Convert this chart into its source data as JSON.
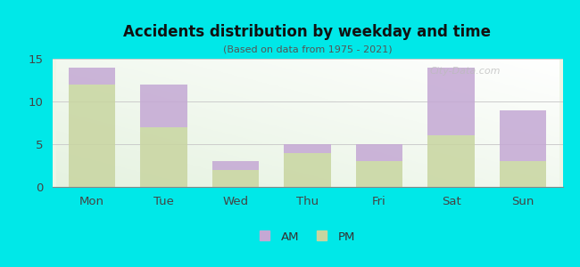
{
  "categories": [
    "Mon",
    "Tue",
    "Wed",
    "Thu",
    "Fri",
    "Sat",
    "Sun"
  ],
  "pm_values": [
    12,
    7,
    2,
    4,
    3,
    6,
    3
  ],
  "am_values": [
    2,
    5,
    1,
    1,
    2,
    8,
    6
  ],
  "am_color": "#c4a8d4",
  "pm_color": "#c8d5a0",
  "title": "Accidents distribution by weekday and time",
  "subtitle": "(Based on data from 1975 - 2021)",
  "background_color": "#00e8e8",
  "ylim": [
    0,
    15
  ],
  "yticks": [
    0,
    5,
    10,
    15
  ],
  "legend_labels": [
    "AM",
    "PM"
  ],
  "watermark": "City-Data.com"
}
